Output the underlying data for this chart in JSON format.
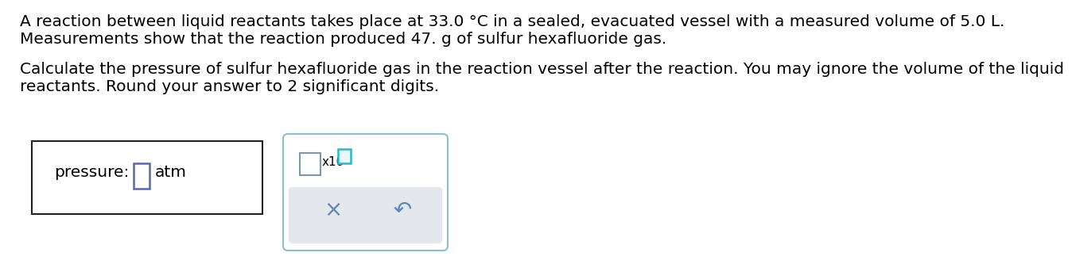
{
  "line1": "A reaction between liquid reactants takes place at 33.0 °C in a sealed, evacuated vessel with a measured volume of 5.0 L.",
  "line2": "Measurements show that the reaction produced 47. g of sulfur hexafluoride gas.",
  "line3": "Calculate the pressure of sulfur hexafluoride gas in the reaction vessel after the reaction. You may ignore the volume of the liquid",
  "line4": "reactants. Round your answer to 2 significant digits.",
  "label_pressure": "pressure:",
  "label_atm": "atm",
  "label_x10": "x10",
  "label_x": "×",
  "label_undo": "↶",
  "bg_color": "#ffffff",
  "text_color": "#000000",
  "box1_edgecolor": "#222222",
  "box2_edgecolor": "#8bbfcf",
  "input_box_edgecolor": "#5566bb",
  "teal_box_edgecolor": "#22bbcc",
  "bottom_panel_color": "#e4e8ec",
  "x_color": "#6688aa",
  "undo_color": "#5588bb",
  "font_size": 14.5,
  "small_font_size": 11
}
